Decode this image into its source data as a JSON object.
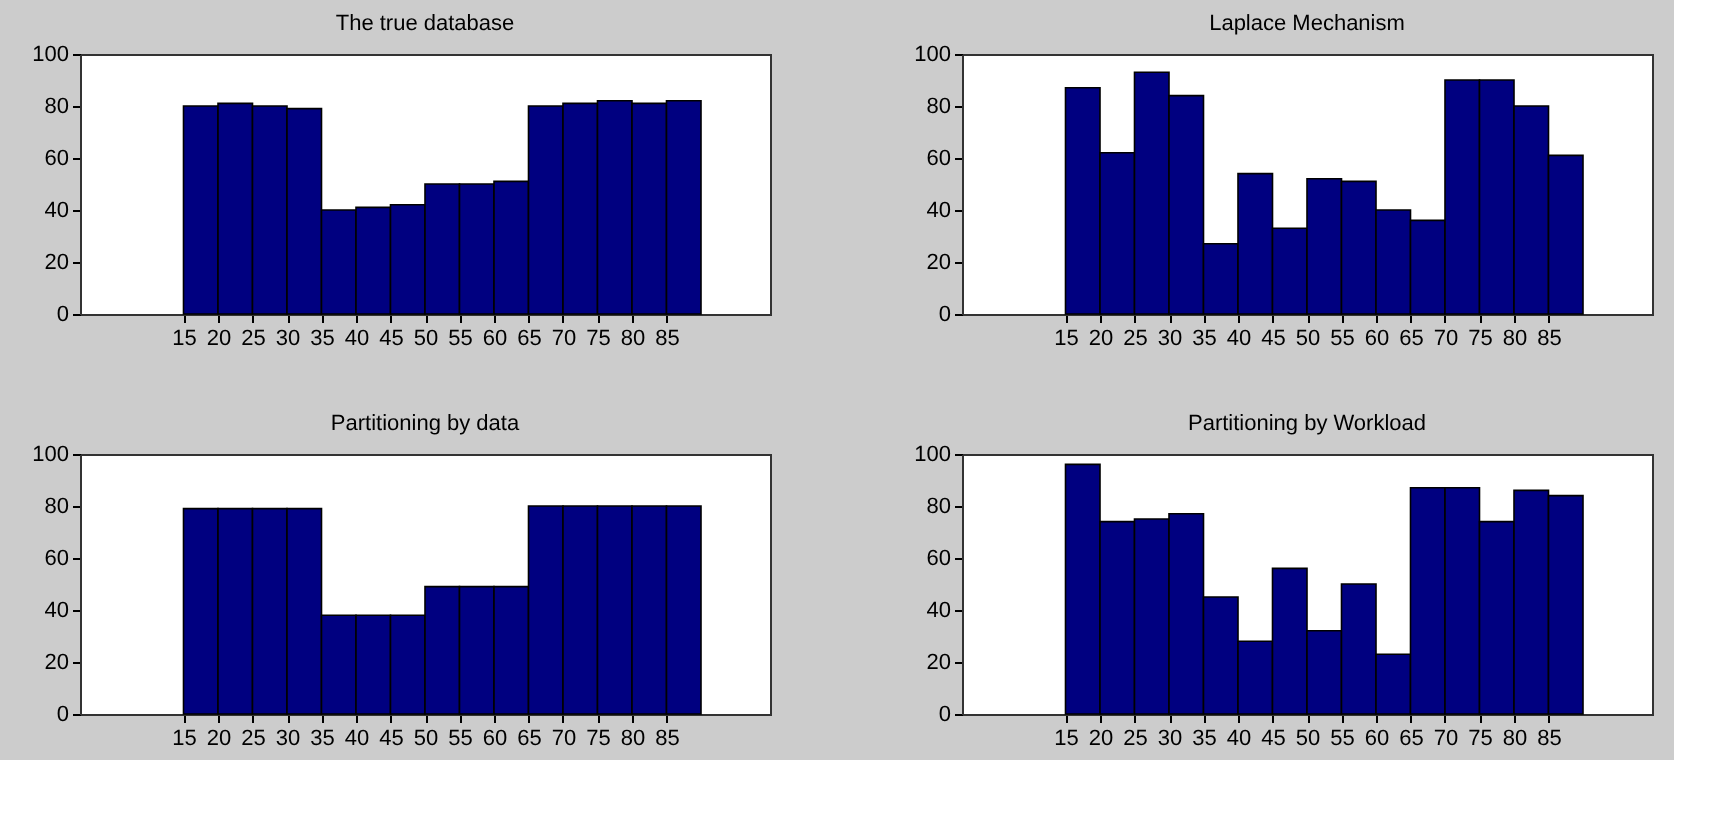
{
  "chart_data": [
    {
      "type": "histogram",
      "title": "The true database",
      "bins": [
        15,
        20,
        25,
        30,
        35,
        40,
        45,
        50,
        55,
        60,
        65,
        70,
        75,
        80,
        85,
        90
      ],
      "values": [
        80,
        81,
        80,
        79,
        40,
        41,
        42,
        50,
        50,
        51,
        80,
        81,
        82,
        81,
        82
      ],
      "color": "#000080",
      "xlim": [
        0,
        100
      ],
      "xticks": [
        15,
        20,
        25,
        30,
        35,
        40,
        45,
        50,
        55,
        60,
        65,
        70,
        75,
        80,
        85
      ],
      "ylim": [
        0,
        100
      ],
      "yticks": [
        0,
        20,
        40,
        60,
        80,
        100
      ],
      "grid": false
    },
    {
      "type": "histogram",
      "title": "Laplace Mechanism",
      "bins": [
        15,
        20,
        25,
        30,
        35,
        40,
        45,
        50,
        55,
        60,
        65,
        70,
        75,
        80,
        85,
        90
      ],
      "values": [
        87,
        62,
        93,
        84,
        27,
        54,
        33,
        52,
        51,
        40,
        36,
        90,
        90,
        80,
        61
      ],
      "color": "#000080",
      "xlim": [
        0,
        100
      ],
      "xticks": [
        15,
        20,
        25,
        30,
        35,
        40,
        45,
        50,
        55,
        60,
        65,
        70,
        75,
        80,
        85
      ],
      "ylim": [
        0,
        100
      ],
      "yticks": [
        0,
        20,
        40,
        60,
        80,
        100
      ],
      "grid": false
    },
    {
      "type": "histogram",
      "title": "Partitioning by data",
      "bins": [
        15,
        20,
        25,
        30,
        35,
        40,
        45,
        50,
        55,
        60,
        65,
        70,
        75,
        80,
        85,
        90
      ],
      "values": [
        79,
        79,
        79,
        79,
        38,
        38,
        38,
        49,
        49,
        49,
        80,
        80,
        80,
        80,
        80
      ],
      "color": "#000080",
      "xlim": [
        0,
        100
      ],
      "xticks": [
        15,
        20,
        25,
        30,
        35,
        40,
        45,
        50,
        55,
        60,
        65,
        70,
        75,
        80,
        85
      ],
      "ylim": [
        0,
        100
      ],
      "yticks": [
        0,
        20,
        40,
        60,
        80,
        100
      ],
      "grid": false
    },
    {
      "type": "histogram",
      "title": "Partitioning by Workload",
      "bins": [
        15,
        20,
        25,
        30,
        35,
        40,
        45,
        50,
        55,
        60,
        65,
        70,
        75,
        80,
        85,
        90
      ],
      "values": [
        96,
        74,
        75,
        77,
        45,
        28,
        56,
        32,
        50,
        23,
        87,
        87,
        74,
        86,
        84
      ],
      "color": "#000080",
      "xlim": [
        0,
        100
      ],
      "xticks": [
        15,
        20,
        25,
        30,
        35,
        40,
        45,
        50,
        55,
        60,
        65,
        70,
        75,
        80,
        85
      ],
      "ylim": [
        0,
        100
      ],
      "yticks": [
        0,
        20,
        40,
        60,
        80,
        100
      ],
      "grid": false
    }
  ]
}
